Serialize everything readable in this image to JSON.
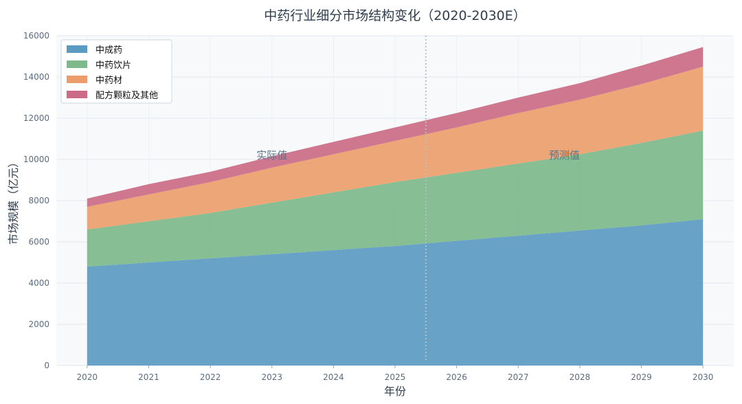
{
  "chart_data": {
    "type": "area",
    "stacked": true,
    "title": "中药行业细分市场结构变化（2020-2030E）",
    "xlabel": "年份",
    "ylabel": "市场规模（亿元）",
    "x": [
      2020,
      2021,
      2022,
      2023,
      2024,
      2025,
      2026,
      2027,
      2028,
      2029,
      2030
    ],
    "xticks": [
      "2020",
      "2021",
      "2022",
      "2023",
      "2024",
      "2025",
      "2026",
      "2027",
      "2028",
      "2029",
      "2030"
    ],
    "xlim": [
      2019.5,
      2030.5
    ],
    "ylim": [
      0,
      16000
    ],
    "yticks": [
      "0",
      "2000",
      "4000",
      "6000",
      "8000",
      "10000",
      "12000",
      "14000",
      "16000"
    ],
    "grid": true,
    "legend_position": "top-left",
    "series": [
      {
        "name": "中成药",
        "color": "#5b9bc2",
        "values": [
          4800,
          5000,
          5200,
          5400,
          5600,
          5800,
          6050,
          6300,
          6550,
          6800,
          7100
        ]
      },
      {
        "name": "中药饮片",
        "color": "#7db98a",
        "values": [
          1800,
          2000,
          2200,
          2500,
          2800,
          3100,
          3300,
          3500,
          3700,
          4000,
          4300
        ]
      },
      {
        "name": "中药材",
        "color": "#eb9e6b",
        "values": [
          1100,
          1300,
          1500,
          1700,
          1850,
          2000,
          2200,
          2450,
          2650,
          2850,
          3100
        ]
      },
      {
        "name": "配方颗粒及其他",
        "color": "#cc6b87",
        "values": [
          400,
          500,
          500,
          550,
          600,
          650,
          700,
          750,
          800,
          900,
          950
        ]
      }
    ],
    "divider_x": 2025.5,
    "annotations": [
      {
        "text": "实际值",
        "x": 2023,
        "y": 10200
      },
      {
        "text": "预测值",
        "x": 2027.75,
        "y": 10200
      }
    ]
  }
}
